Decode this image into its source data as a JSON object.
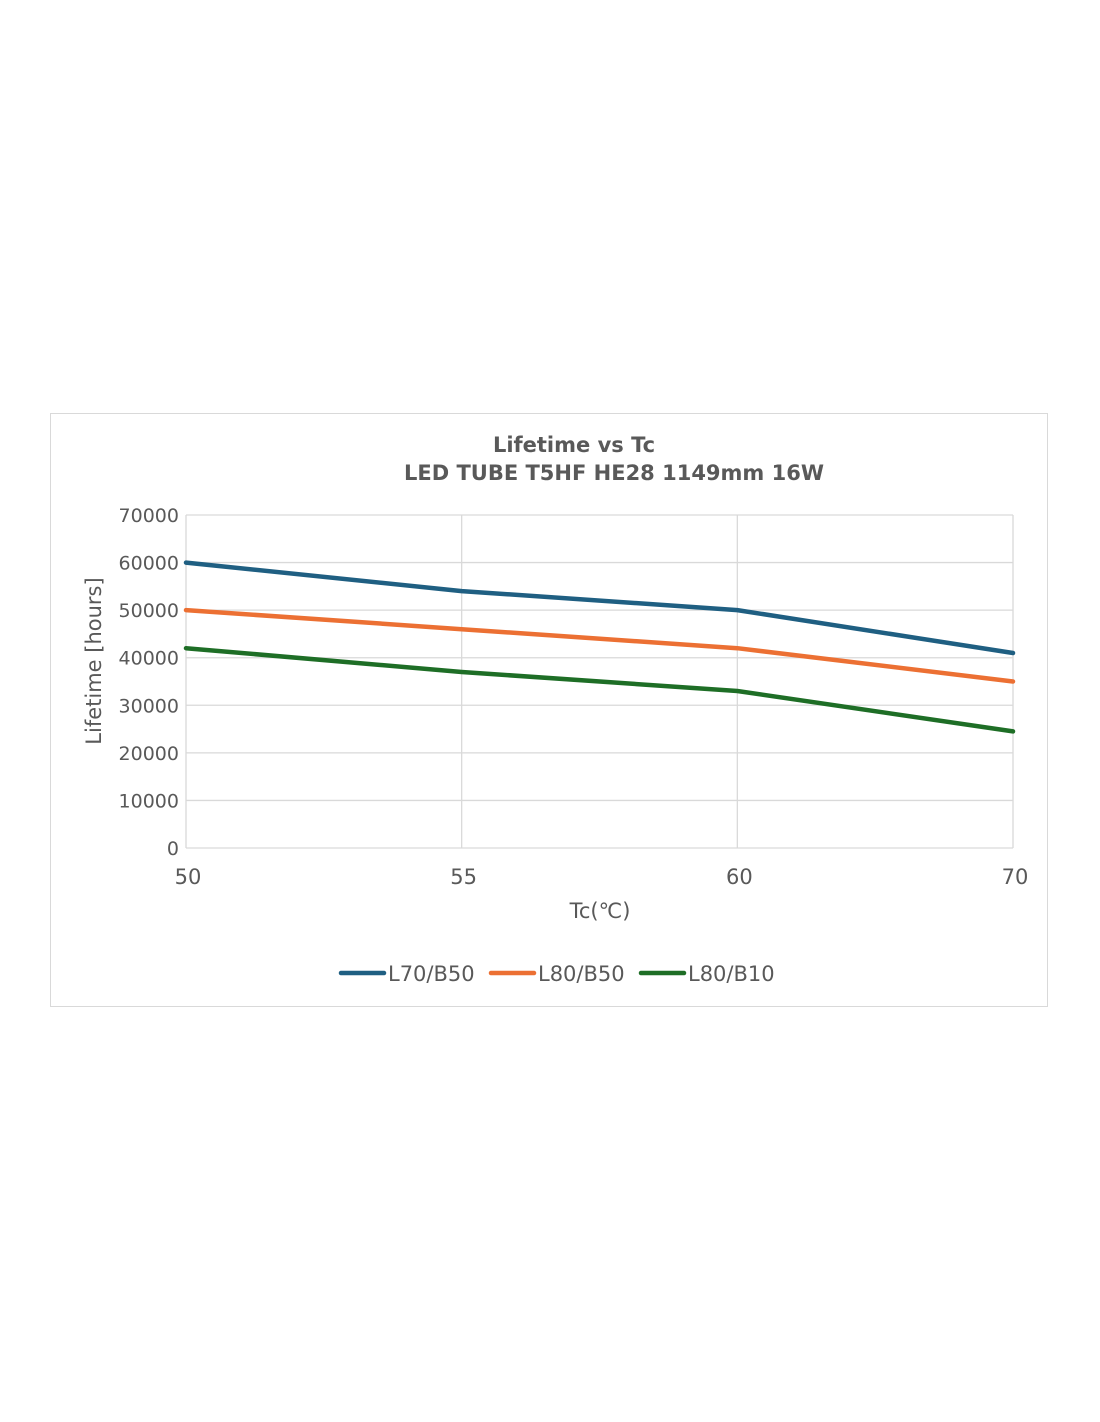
{
  "chart_data": {
    "type": "line",
    "title": "Lifetime vs Tc",
    "subtitle": "LED TUBE T5HF HE28 1149mm 16W",
    "xlabel": "Tc(℃)",
    "ylabel": "Lifetime [hours]",
    "x": [
      50,
      55,
      60,
      70
    ],
    "x_tick_labels": [
      "50",
      "55",
      "60",
      "70"
    ],
    "x_scale": "categorical",
    "ylim": [
      0,
      70000
    ],
    "y_ticks": [
      0,
      10000,
      20000,
      30000,
      40000,
      50000,
      60000,
      70000
    ],
    "y_tick_labels": [
      "0",
      "10000",
      "20000",
      "30000",
      "40000",
      "50000",
      "60000",
      "70000"
    ],
    "grid": true,
    "legend_position": "bottom",
    "series": [
      {
        "name": "L70/B50",
        "color": "#1f5f82",
        "values": [
          60000,
          54000,
          50000,
          41000
        ]
      },
      {
        "name": "L80/B50",
        "color": "#ec7033",
        "values": [
          50000,
          46000,
          42000,
          35000
        ]
      },
      {
        "name": "L80/B10",
        "color": "#1e6e26",
        "values": [
          42000,
          37000,
          33000,
          24500
        ]
      }
    ]
  }
}
